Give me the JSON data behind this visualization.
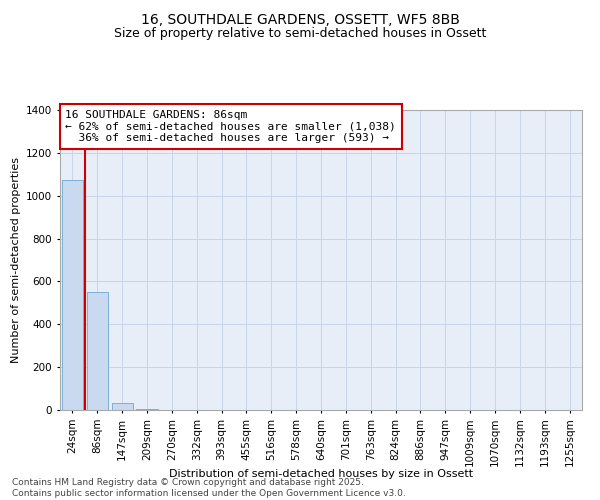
{
  "title1": "16, SOUTHDALE GARDENS, OSSETT, WF5 8BB",
  "title2": "Size of property relative to semi-detached houses in Ossett",
  "xlabel": "Distribution of semi-detached houses by size in Ossett",
  "ylabel": "Number of semi-detached properties",
  "categories": [
    "24sqm",
    "86sqm",
    "147sqm",
    "209sqm",
    "270sqm",
    "332sqm",
    "393sqm",
    "455sqm",
    "516sqm",
    "578sqm",
    "640sqm",
    "701sqm",
    "763sqm",
    "824sqm",
    "886sqm",
    "947sqm",
    "1009sqm",
    "1070sqm",
    "1132sqm",
    "1193sqm",
    "1255sqm"
  ],
  "values": [
    1075,
    550,
    35,
    5,
    0,
    0,
    0,
    0,
    0,
    0,
    0,
    0,
    0,
    0,
    0,
    0,
    0,
    0,
    0,
    0,
    0
  ],
  "bar_color": "#c9d9f0",
  "bar_edge_color": "#7aafd4",
  "red_line_x": 0.5,
  "annotation_text": "16 SOUTHDALE GARDENS: 86sqm\n← 62% of semi-detached houses are smaller (1,038)\n  36% of semi-detached houses are larger (593) →",
  "annotation_box_color": "#ffffff",
  "annotation_box_edge": "#cc0000",
  "red_line_color": "#cc0000",
  "ylim": [
    0,
    1400
  ],
  "yticks": [
    0,
    200,
    400,
    600,
    800,
    1000,
    1200,
    1400
  ],
  "grid_color": "#c8d4e8",
  "background_color": "#e8eef8",
  "footer_text": "Contains HM Land Registry data © Crown copyright and database right 2025.\nContains public sector information licensed under the Open Government Licence v3.0.",
  "title1_fontsize": 10,
  "title2_fontsize": 9,
  "xlabel_fontsize": 8,
  "ylabel_fontsize": 8,
  "tick_fontsize": 7.5,
  "annotation_fontsize": 8,
  "footer_fontsize": 6.5
}
